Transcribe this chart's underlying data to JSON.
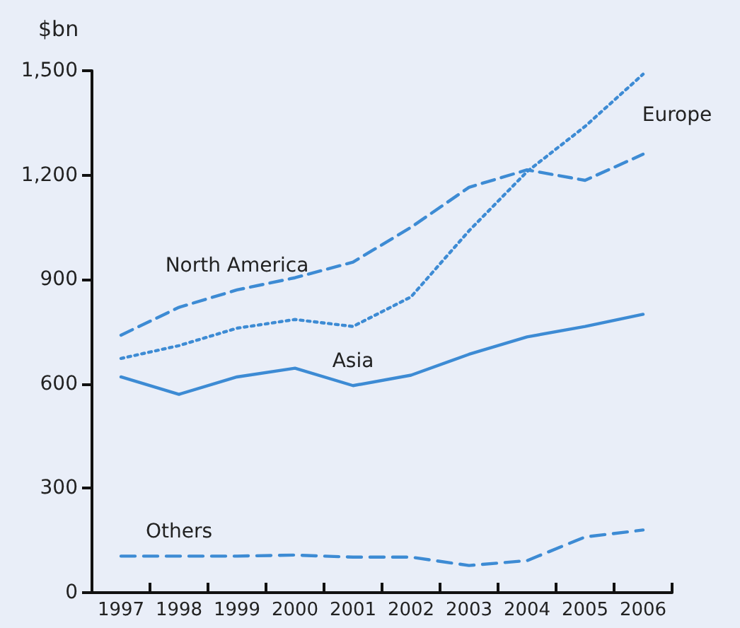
{
  "chart_data": {
    "type": "line",
    "ylabel": "$bn",
    "categories": [
      "1997",
      "1998",
      "1999",
      "2000",
      "2001",
      "2002",
      "2003",
      "2004",
      "2005",
      "2006"
    ],
    "series": [
      {
        "name": "Europe",
        "color": "#3d8bd4",
        "line_style": "dotted",
        "values": [
          673,
          710,
          760,
          785,
          765,
          850,
          1040,
          1210,
          1340,
          1490
        ]
      },
      {
        "name": "North America",
        "color": "#3d8bd4",
        "line_style": "dashed",
        "values": [
          740,
          820,
          870,
          905,
          950,
          1050,
          1165,
          1215,
          1185,
          1260
        ]
      },
      {
        "name": "Asia",
        "color": "#3d8bd4",
        "line_style": "solid",
        "values": [
          620,
          570,
          620,
          645,
          595,
          625,
          685,
          735,
          765,
          800
        ]
      },
      {
        "name": "Others",
        "color": "#3d8bd4",
        "line_style": "dashed",
        "values": [
          105,
          105,
          105,
          108,
          102,
          102,
          78,
          92,
          160,
          180
        ]
      }
    ],
    "ylim": [
      0,
      1500
    ],
    "yticks": [
      0,
      300,
      600,
      900,
      {
        "value": 1200,
        "label": "1,200"
      },
      {
        "value": 1500,
        "label": "1,500"
      }
    ],
    "grid": false,
    "legend": false,
    "marker": "none"
  }
}
